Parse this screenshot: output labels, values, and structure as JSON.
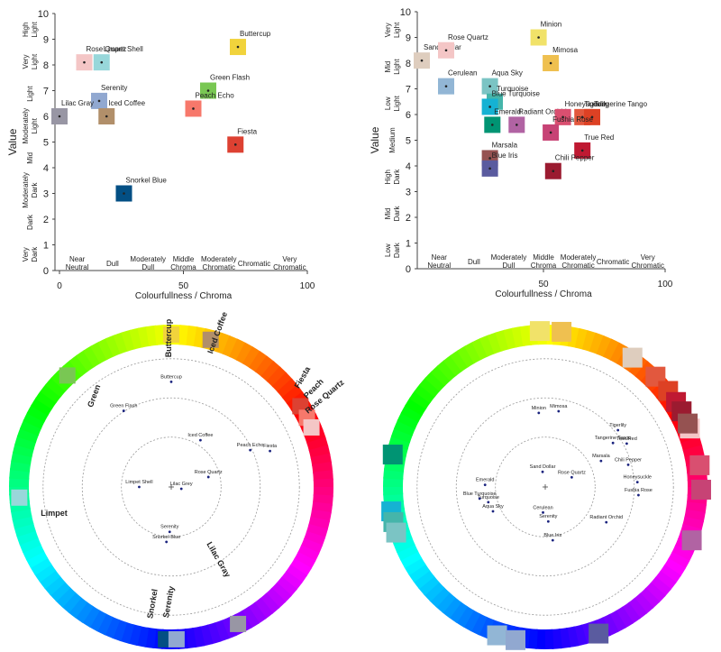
{
  "chart_data": [
    {
      "type": "scatter",
      "xlabel": "Colourfullness / Chroma",
      "ylabel": "Value",
      "ylim": [
        0,
        10
      ],
      "x_ticks": [
        0,
        50,
        100
      ],
      "y_ticks": [
        0,
        1,
        2,
        3,
        4,
        5,
        6,
        7,
        8,
        9,
        10
      ],
      "x_categories": [
        "Near Neutral",
        "Dull",
        "Moderately Dull",
        "Middle Chroma",
        "Moderately Chromatic",
        "Chromatic",
        "Very Chromatic"
      ],
      "y_categories": [
        "High Light",
        "Very Light",
        "Light",
        "Moderately Light",
        "Mid",
        "Moderately Dark",
        "Dark",
        "Very Dark"
      ],
      "points": [
        {
          "name": "Rose Quartz",
          "x": 10,
          "y": 8.1,
          "color": "#F4C6C6"
        },
        {
          "name": "Limpet Shell",
          "x": 17,
          "y": 8.1,
          "color": "#98D7DA"
        },
        {
          "name": "Serenity",
          "x": 16,
          "y": 6.6,
          "color": "#91A8D0"
        },
        {
          "name": "Lilac Gray",
          "x": 0,
          "y": 6.0,
          "color": "#9896A4"
        },
        {
          "name": "Iced Coffee",
          "x": 19,
          "y": 6.0,
          "color": "#B18F6A"
        },
        {
          "name": "Buttercup",
          "x": 72,
          "y": 8.7,
          "color": "#F1D33C"
        },
        {
          "name": "Green Flash",
          "x": 60,
          "y": 7.0,
          "color": "#79C753"
        },
        {
          "name": "Peach Echo",
          "x": 54,
          "y": 6.3,
          "color": "#F7786B"
        },
        {
          "name": "Fiesta",
          "x": 71,
          "y": 4.9,
          "color": "#DD4132"
        },
        {
          "name": "Snorkel Blue",
          "x": 26,
          "y": 3.0,
          "color": "#034F84"
        }
      ]
    },
    {
      "type": "scatter",
      "xlabel": "Colourfullness / Chroma",
      "ylabel": "Value",
      "ylim": [
        0,
        10
      ],
      "x_ticks": [
        50,
        100
      ],
      "y_ticks": [
        0,
        1,
        2,
        3,
        4,
        5,
        6,
        7,
        8,
        9,
        10
      ],
      "x_categories": [
        "Near Neutral",
        "Dull",
        "Moderately Dull",
        "Middle Chroma",
        "Moderately Chromatic",
        "Chromatic",
        "Very Chromatic"
      ],
      "y_categories": [
        "Very Light",
        "Mid Light",
        "Low Light",
        "Medium",
        "High Dark",
        "Mid Dark",
        "Low Dark"
      ],
      "points": [
        {
          "name": "Sand Dollar",
          "x": 0,
          "y": 8.1,
          "color": "#DECDBE"
        },
        {
          "name": "Rose Quartz",
          "x": 10,
          "y": 8.5,
          "color": "#F4C6C6"
        },
        {
          "name": "Cerulean",
          "x": 10,
          "y": 7.1,
          "color": "#92B6D5"
        },
        {
          "name": "Aqua Sky",
          "x": 28,
          "y": 7.1,
          "color": "#7BC4C4"
        },
        {
          "name": "Turquoise",
          "x": 30,
          "y": 6.5,
          "color": "#45B5AA"
        },
        {
          "name": "Blue Turquoise",
          "x": 28,
          "y": 6.3,
          "color": "#15B2D3"
        },
        {
          "name": "Emerald",
          "x": 29,
          "y": 5.6,
          "color": "#009473"
        },
        {
          "name": "Radiant Orchid",
          "x": 39,
          "y": 5.6,
          "color": "#B163A3"
        },
        {
          "name": "Minion",
          "x": 48,
          "y": 9.0,
          "color": "#F1E269"
        },
        {
          "name": "Mimosa",
          "x": 53,
          "y": 8.0,
          "color": "#EFC050"
        },
        {
          "name": "Honeysuckle",
          "x": 58,
          "y": 5.9,
          "color": "#D94F70"
        },
        {
          "name": "Tigerlily",
          "x": 66,
          "y": 5.9,
          "color": "#E2583E"
        },
        {
          "name": "Tangerine Tango",
          "x": 70,
          "y": 5.9,
          "color": "#DD4124"
        },
        {
          "name": "Fushia Rose",
          "x": 53,
          "y": 5.3,
          "color": "#C74375"
        },
        {
          "name": "True Red",
          "x": 66,
          "y": 4.6,
          "color": "#BF1932"
        },
        {
          "name": "Marsala",
          "x": 28,
          "y": 4.3,
          "color": "#955251"
        },
        {
          "name": "Blue Iris",
          "x": 28,
          "y": 3.9,
          "color": "#5A5B9F"
        },
        {
          "name": "Chili Pepper",
          "x": 54,
          "y": 3.8,
          "color": "#9B1B30"
        }
      ]
    },
    {
      "type": "polar-hue-wheel",
      "points": [
        {
          "name": "Buttercup",
          "angle": -90,
          "r": 0.82,
          "color": "#F1D33C"
        },
        {
          "name": "Iced Coffee",
          "angle": -58,
          "r": 0.43,
          "color": "#B18F6A"
        },
        {
          "name": "Green Flash",
          "angle": -122,
          "r": 0.7,
          "color": "#79C753"
        },
        {
          "name": "Fiesta",
          "angle": -20,
          "r": 0.82,
          "color": "#DD4132"
        },
        {
          "name": "Peach Echo",
          "angle": -25,
          "r": 0.68,
          "color": "#F7786B"
        },
        {
          "name": "Rose Quartz",
          "angle": -15,
          "r": 0.3,
          "color": "#F4C6C6"
        },
        {
          "name": "Limpet Shell",
          "angle": 180,
          "r": 0.25,
          "color": "#98D7DA"
        },
        {
          "name": "Lilac Grey",
          "angle": 10,
          "r": 0.08,
          "color": "#9896A4"
        },
        {
          "name": "Serenity",
          "angle": 92,
          "r": 0.35,
          "color": "#91A8D0"
        },
        {
          "name": "Snorkel Blue",
          "angle": 95,
          "r": 0.43,
          "color": "#034F84"
        }
      ],
      "rim_labels": [
        "Buttercup",
        "Iced Coffee",
        "Fiesta",
        "Peach",
        "Rose Quartz",
        "Green",
        "Limpet",
        "Snorkel",
        "Serenity",
        "Lilac Gray"
      ]
    },
    {
      "type": "polar-hue-wheel",
      "points": [
        {
          "name": "Minion",
          "angle": -95,
          "r": 0.58,
          "color": "#F1E269"
        },
        {
          "name": "Mimosa",
          "angle": -80,
          "r": 0.6,
          "color": "#EFC050"
        },
        {
          "name": "Tigerlily",
          "angle": -38,
          "r": 0.72,
          "color": "#E2583E"
        },
        {
          "name": "Tangerine Tango",
          "angle": -33,
          "r": 0.63,
          "color": "#DD4124"
        },
        {
          "name": "True Red",
          "angle": -28,
          "r": 0.72,
          "color": "#BF1932"
        },
        {
          "name": "Chili Pepper",
          "angle": -15,
          "r": 0.67,
          "color": "#9B1B30"
        },
        {
          "name": "Marsala",
          "angle": -25,
          "r": 0.48,
          "color": "#955251"
        },
        {
          "name": "Honeysuckle",
          "angle": -3,
          "r": 0.72,
          "color": "#D94F70"
        },
        {
          "name": "Fushia Rose",
          "angle": 5,
          "r": 0.73,
          "color": "#C74375"
        },
        {
          "name": "Radiant Orchid",
          "angle": 30,
          "r": 0.55,
          "color": "#B163A3"
        },
        {
          "name": "Sand Dollar",
          "angle": -100,
          "r": 0.12,
          "color": "#DECDBE"
        },
        {
          "name": "Rose Quartz",
          "angle": -20,
          "r": 0.22,
          "color": "#F4C6C6"
        },
        {
          "name": "Emerald",
          "angle": -178,
          "r": 0.47,
          "color": "#009473"
        },
        {
          "name": "Turquoise",
          "angle": 165,
          "r": 0.46,
          "color": "#45B5AA"
        },
        {
          "name": "Blue Turquoise",
          "angle": 170,
          "r": 0.52,
          "color": "#15B2D3"
        },
        {
          "name": "Aqua Sky",
          "angle": 155,
          "r": 0.45,
          "color": "#7BC4C4"
        },
        {
          "name": "Cerulean",
          "angle": 95,
          "r": 0.2,
          "color": "#92B6D5"
        },
        {
          "name": "Serenity",
          "angle": 85,
          "r": 0.27,
          "color": "#91A8D0"
        },
        {
          "name": "Blue Iris",
          "angle": 82,
          "r": 0.42,
          "color": "#5A5B9F"
        }
      ],
      "rim_squares": [
        {
          "angle": -92,
          "color": "#F1E269"
        },
        {
          "angle": -84,
          "color": "#EFC050"
        },
        {
          "angle": -56,
          "color": "#DECDBE"
        },
        {
          "angle": -45,
          "color": "#E2583E"
        },
        {
          "angle": -38,
          "color": "#DD4124"
        },
        {
          "angle": -33,
          "color": "#BF1932"
        },
        {
          "angle": -29,
          "color": "#9B1B30"
        },
        {
          "angle": -22,
          "color": "#F4C6C6"
        },
        {
          "angle": -24,
          "color": "#955251"
        },
        {
          "angle": -8,
          "color": "#D94F70"
        },
        {
          "angle": 1,
          "color": "#C74375"
        },
        {
          "angle": 20,
          "color": "#B163A3"
        },
        {
          "angle": -168,
          "color": "#009473"
        },
        {
          "angle": 171,
          "color": "#15B2D3"
        },
        {
          "angle": 167,
          "color": "#45B5AA"
        },
        {
          "angle": 163,
          "color": "#7BC4C4"
        },
        {
          "angle": 108,
          "color": "#92B6D5"
        },
        {
          "angle": 101,
          "color": "#91A8D0"
        },
        {
          "angle": 70,
          "color": "#5A5B9F"
        }
      ]
    }
  ]
}
